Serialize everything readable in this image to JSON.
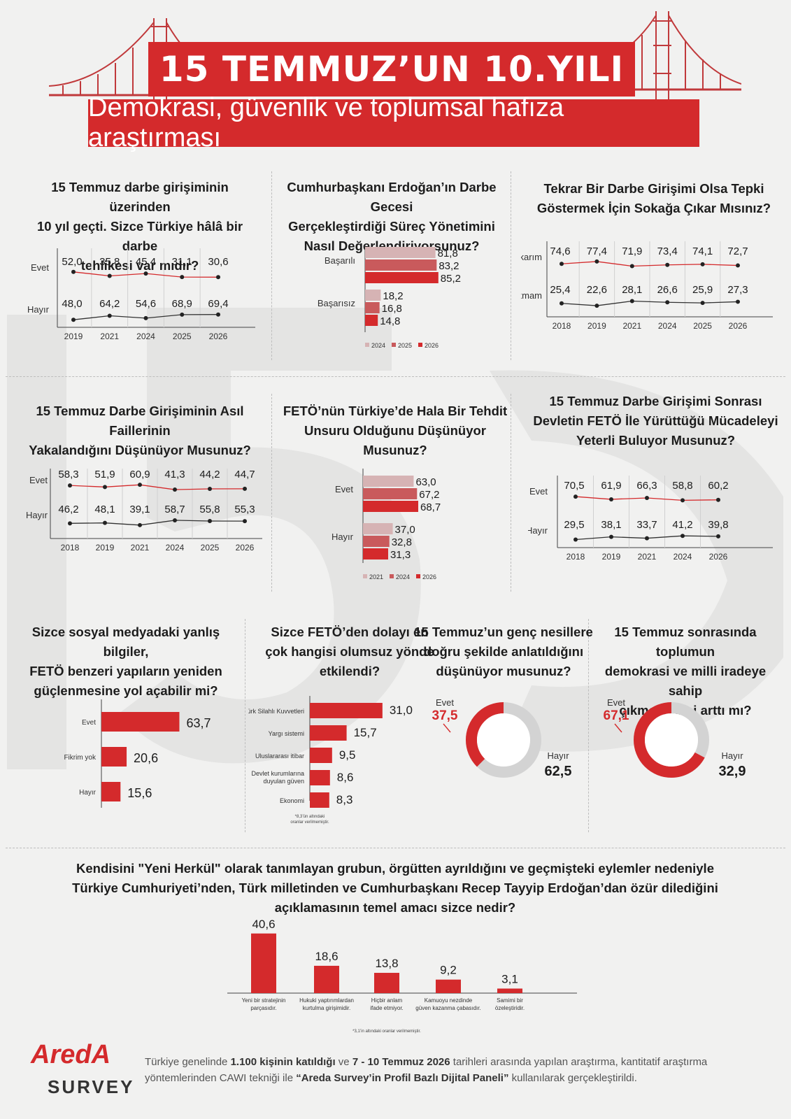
{
  "header": {
    "title": "15 TEMMUZ’UN 10.YILI",
    "subtitle": "Demokrasi, güvenlik ve toplumsal hafıza araştırması"
  },
  "colors": {
    "red": "#d42a2c",
    "mid": "#c95a5c",
    "light": "#d6b3b4",
    "gray": "#d3d3d3",
    "line_dark": "#333333"
  },
  "chart_data": [
    {
      "id": "c1",
      "type": "line",
      "title": "15 Temmuz darbe girişiminin üzerinden 10 yıl geçti. Sizce Türkiye hâlâ bir darbe tehlikesi var mıdır?",
      "x": [
        "2019",
        "2021",
        "2024",
        "2025",
        "2026"
      ],
      "series": [
        {
          "name": "Evet",
          "values": [
            52.0,
            35.8,
            45.4,
            31.1,
            30.6
          ],
          "labels": [
            "52,0",
            "35,8",
            "45,4",
            "31,1",
            "30,6"
          ]
        },
        {
          "name": "Hayır",
          "values": [
            48.0,
            64.2,
            54.6,
            68.9,
            69.4
          ],
          "labels": [
            "48,0",
            "64,2",
            "54,6",
            "68,9",
            "69,4"
          ]
        }
      ]
    },
    {
      "id": "c2",
      "type": "bar",
      "title": "Cumhurbaşkanı Erdoğan’ın Darbe Gecesi Gerçekleştirdiği Süreç Yönetimini Nasıl Değerlendiriyorsunuz?",
      "categories": [
        "Başarılı",
        "Başarısız"
      ],
      "series": [
        {
          "name": "2024",
          "values": [
            81.8,
            18.2
          ],
          "labels": [
            "81,8",
            "18,2"
          ]
        },
        {
          "name": "2025",
          "values": [
            83.2,
            16.8
          ],
          "labels": [
            "83,2",
            "16,8"
          ]
        },
        {
          "name": "2026",
          "values": [
            85.2,
            14.8
          ],
          "labels": [
            "85,2",
            "14,8"
          ]
        }
      ]
    },
    {
      "id": "c3",
      "type": "line",
      "title": "Tekrar Bir Darbe Girişimi Olsa Tepki Göstermek İçin Sokağa Çıkar Mısınız?",
      "x": [
        "2018",
        "2019",
        "2021",
        "2024",
        "2025",
        "2026"
      ],
      "series": [
        {
          "name": "Çıkarım",
          "values": [
            74.6,
            77.4,
            71.9,
            73.4,
            74.1,
            72.7
          ],
          "labels": [
            "74,6",
            "77,4",
            "71,9",
            "73,4",
            "74,1",
            "72,7"
          ]
        },
        {
          "name": "Çıkmam",
          "values": [
            25.4,
            22.6,
            28.1,
            26.6,
            25.9,
            27.3
          ],
          "labels": [
            "25,4",
            "22,6",
            "28,1",
            "26,6",
            "25,9",
            "27,3"
          ]
        }
      ]
    },
    {
      "id": "c4",
      "type": "line",
      "title": "15 Temmuz Darbe Girişiminin Asıl Faillerinin Yakalandığını Düşünüyor Musunuz?",
      "x": [
        "2018",
        "2019",
        "2021",
        "2024",
        "2025",
        "2026"
      ],
      "series": [
        {
          "name": "Evet",
          "values": [
            58.3,
            51.9,
            60.9,
            41.3,
            44.2,
            44.7
          ],
          "labels": [
            "58,3",
            "51,9",
            "60,9",
            "41,3",
            "44,2",
            "44,7"
          ]
        },
        {
          "name": "Hayır",
          "values": [
            46.2,
            48.1,
            39.1,
            58.7,
            55.8,
            55.3
          ],
          "labels": [
            "46,2",
            "48,1",
            "39,1",
            "58,7",
            "55,8",
            "55,3"
          ]
        }
      ]
    },
    {
      "id": "c5",
      "type": "bar",
      "title": "FETÖ’nün Türkiye’de Hala Bir Tehdit Unsuru Olduğunu Düşünüyor Musunuz?",
      "categories": [
        "Evet",
        "Hayır"
      ],
      "series": [
        {
          "name": "2021",
          "values": [
            63.0,
            37.0
          ],
          "labels": [
            "63,0",
            "37,0"
          ]
        },
        {
          "name": "2024",
          "values": [
            67.2,
            32.8
          ],
          "labels": [
            "67,2",
            "32,8"
          ]
        },
        {
          "name": "2026",
          "values": [
            68.7,
            31.3
          ],
          "labels": [
            "68,7",
            "31,3"
          ]
        }
      ]
    },
    {
      "id": "c6",
      "type": "line",
      "title": "15 Temmuz Darbe Girişimi Sonrası Devletin FETÖ İle Yürüttüğü Mücadeleyi Yeterli Buluyor Musunuz?",
      "x": [
        "2018",
        "2019",
        "2021",
        "2024",
        "2026"
      ],
      "series": [
        {
          "name": "Evet",
          "values": [
            70.5,
            61.9,
            66.3,
            58.8,
            60.2
          ],
          "labels": [
            "70,5",
            "61,9",
            "66,3",
            "58,8",
            "60,2"
          ]
        },
        {
          "name": "Hayır",
          "values": [
            29.5,
            38.1,
            33.7,
            41.2,
            39.8
          ],
          "labels": [
            "29,5",
            "38,1",
            "33,7",
            "41,2",
            "39,8"
          ]
        }
      ]
    },
    {
      "id": "c7",
      "type": "bar",
      "title": "Sizce sosyal medyadaki yanlış bilgiler, FETÖ benzeri yapıların yeniden güçlenmesine yol açabilir mi?",
      "categories": [
        "Evet",
        "Fikrim yok",
        "Hayır"
      ],
      "values": [
        63.7,
        20.6,
        15.6
      ],
      "labels": [
        "63,7",
        "20,6",
        "15,6"
      ]
    },
    {
      "id": "c8",
      "type": "bar",
      "title": "Sizce FETÖ’den dolayı en çok hangisi olumsuz yönde etkilendi?",
      "categories": [
        "Türk Silahlı Kuvvetleri",
        "Yargı sistemi",
        "Uluslararası itibar",
        "Devlet kurumlarına duyulan güven",
        "Ekonomi"
      ],
      "values": [
        31.0,
        15.7,
        9.5,
        8.6,
        8.3
      ],
      "labels": [
        "31,0",
        "15,7",
        "9,5",
        "8,6",
        "8,3"
      ],
      "note": [
        "*8,3’ün altındaki",
        "oranlar verilmemiştir."
      ]
    },
    {
      "id": "c9",
      "type": "pie",
      "title": "15 Temmuz’un genç nesillere doğru şekilde anlatıldığını düşünüyor musunuz?",
      "categories": [
        "Evet",
        "Hayır"
      ],
      "values": [
        37.5,
        62.5
      ],
      "labels": [
        "37,5",
        "62,5"
      ]
    },
    {
      "id": "c10",
      "type": "pie",
      "title": "15 Temmuz sonrasında toplumun demokrasi ve milli iradeye sahip çıkma bilinci arttı mı?",
      "categories": [
        "Evet",
        "Hayır"
      ],
      "values": [
        67.1,
        32.9
      ],
      "labels": [
        "67,1",
        "32,9"
      ]
    },
    {
      "id": "c11",
      "type": "bar",
      "title": "Kendisini \"Yeni Herkül\" olarak tanımlayan grubun, örgütten ayrıldığını ve geçmişteki eylemler nedeniyle Türkiye Cumhuriyeti’nden, Türk milletinden ve Cumhurbaşkanı Recep Tayyip Erdoğan’dan özür dilediğini açıklamasının temel amacı sizce nedir?",
      "categories": [
        [
          "Yeni bir stratejinin",
          "parçasıdır."
        ],
        [
          "Hukuki yaptırımlardan",
          "kurtulma girişimidir."
        ],
        [
          "Hiçbir anlam",
          "ifade etmiyor."
        ],
        [
          "Kamuoyu nezdinde",
          "güven kazanma çabasıdır."
        ],
        [
          "Samimi bir",
          "özeleştiridir."
        ]
      ],
      "values": [
        40.6,
        18.6,
        13.8,
        9.2,
        3.1
      ],
      "labels": [
        "40,6",
        "18,6",
        "13,8",
        "9,2",
        "3,1"
      ],
      "note": "*3,1’in altındaki oranlar verilmemiştir."
    }
  ],
  "titles": {
    "c1": [
      "15 Temmuz darbe girişiminin üzerinden",
      "10 yıl geçti. Sizce Türkiye hâlâ bir darbe",
      "tehlikesi var mıdır?"
    ],
    "c2": [
      "Cumhurbaşkanı Erdoğan’ın Darbe Gecesi",
      "Gerçekleştirdiği Süreç Yönetimini",
      "Nasıl Değerlendiriyorsunuz?"
    ],
    "c3": [
      "Tekrar Bir Darbe Girişimi Olsa Tepki",
      "Göstermek İçin Sokağa Çıkar Mısınız?"
    ],
    "c4": [
      "15 Temmuz Darbe Girişiminin Asıl Faillerinin",
      "Yakalandığını Düşünüyor Musunuz?"
    ],
    "c5": [
      "FETÖ’nün Türkiye’de Hala Bir Tehdit",
      "Unsuru Olduğunu Düşünüyor Musunuz?"
    ],
    "c6": [
      "15 Temmuz Darbe Girişimi Sonrası",
      "Devletin FETÖ İle Yürüttüğü Mücadeleyi",
      "Yeterli Buluyor Musunuz?"
    ],
    "c7": [
      "Sizce sosyal medyadaki yanlış bilgiler,",
      "FETÖ benzeri yapıların yeniden",
      "güçlenmesine yol açabilir mi?"
    ],
    "c8": [
      "Sizce FETÖ’den dolayı en",
      "çok hangisi olumsuz yönde",
      "etkilendi?"
    ],
    "c9": [
      "15 Temmuz’un genç nesillere",
      "doğru şekilde anlatıldığını",
      "düşünüyor musunuz?"
    ],
    "c10": [
      "15 Temmuz sonrasında toplumun",
      "demokrasi ve milli iradeye sahip",
      "çıkma bilinci arttı mı?"
    ],
    "c11": [
      "Kendisini \"Yeni Herkül\" olarak tanımlayan grubun, örgütten ayrıldığını ve geçmişteki eylemler nedeniyle",
      "Türkiye Cumhuriyeti’nden, Türk milletinden ve Cumhurbaşkanı Recep Tayyip Erdoğan’dan özür dilediğini",
      "açıklamasının temel amacı sizce nedir?"
    ]
  },
  "logo": {
    "brand": "AredA",
    "tagline": "SURVEY"
  },
  "footer": {
    "p1": "Türkiye genelinde ",
    "b1": "1.100 kişinin katıldığı",
    "p2": " ve ",
    "b2": "7 - 10 Temmuz 2026",
    "p3": " tarihleri arasında yapılan araştırma, kantitatif araştırma yöntemlerinden CAWI tekniği ile ",
    "b3": "“Areda Survey’in Profil Bazlı Dijital Paneli”",
    "p4": " kullanılarak gerçekleştirildi."
  }
}
